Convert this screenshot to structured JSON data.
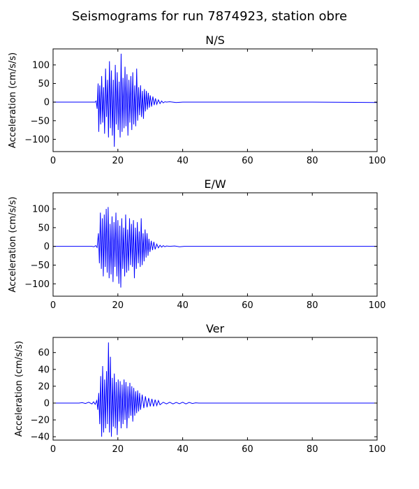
{
  "figure": {
    "title": "Seismograms for run 7874923, station obre"
  },
  "chart_data": [
    {
      "type": "line",
      "title": "N/S",
      "xlabel": "",
      "ylabel": "Acceleration (cm/s/s)",
      "xlim": [
        0,
        100
      ],
      "ylim": [
        -133,
        143
      ],
      "xticks": [
        0,
        20,
        40,
        60,
        80,
        100
      ],
      "yticks": [
        -100,
        -50,
        0,
        50,
        100
      ],
      "color": "#0000ff",
      "grid": false,
      "x": [
        0,
        13,
        13.3,
        13.6,
        13.9,
        14.1,
        14.4,
        14.7,
        15,
        15.3,
        15.6,
        15.9,
        16.2,
        16.5,
        16.8,
        17.1,
        17.4,
        17.7,
        18,
        18.3,
        18.6,
        18.9,
        19.2,
        19.5,
        19.8,
        20.1,
        20.4,
        20.7,
        21,
        21.3,
        21.6,
        21.9,
        22.2,
        22.5,
        22.8,
        23.1,
        23.4,
        23.7,
        24,
        24.3,
        24.6,
        24.9,
        25.2,
        25.5,
        25.8,
        26.1,
        26.4,
        26.7,
        27,
        27.3,
        27.6,
        27.9,
        28.2,
        28.5,
        28.8,
        29.1,
        29.4,
        29.7,
        30,
        30.4,
        30.8,
        31.2,
        31.6,
        32,
        32.5,
        33,
        33.5,
        34,
        34.5,
        35,
        36,
        38,
        40,
        45,
        60,
        80,
        100
      ],
      "y": [
        0,
        0,
        3,
        -18,
        50,
        -80,
        45,
        -60,
        70,
        -55,
        40,
        -85,
        90,
        -40,
        60,
        -95,
        110,
        -70,
        85,
        -90,
        60,
        -120,
        100,
        -60,
        80,
        -75,
        55,
        -95,
        130,
        -80,
        65,
        -70,
        95,
        -65,
        75,
        -90,
        60,
        -55,
        70,
        -75,
        80,
        -60,
        45,
        -65,
        90,
        -50,
        40,
        -35,
        45,
        -40,
        30,
        -45,
        35,
        -25,
        30,
        -20,
        25,
        -15,
        18,
        -12,
        15,
        -8,
        10,
        -6,
        6,
        -4,
        3,
        -2,
        1,
        0,
        1,
        -1,
        0,
        0,
        0,
        0,
        -1
      ]
    },
    {
      "type": "line",
      "title": "E/W",
      "xlabel": "",
      "ylabel": "Acceleration (cm/s/s)",
      "xlim": [
        0,
        100
      ],
      "ylim": [
        -133,
        143
      ],
      "xticks": [
        0,
        20,
        40,
        60,
        80,
        100
      ],
      "yticks": [
        -100,
        -50,
        0,
        50,
        100
      ],
      "color": "#0000ff",
      "grid": false,
      "x": [
        0,
        12,
        12.6,
        13.2,
        13.6,
        14,
        14.3,
        14.6,
        14.9,
        15.2,
        15.5,
        15.8,
        16.1,
        16.4,
        16.7,
        17,
        17.3,
        17.6,
        17.9,
        18.2,
        18.5,
        18.8,
        19.1,
        19.4,
        19.7,
        20,
        20.3,
        20.6,
        20.9,
        21.2,
        21.5,
        21.8,
        22.1,
        22.4,
        22.7,
        23,
        23.3,
        23.6,
        23.9,
        24.2,
        24.5,
        24.8,
        25.1,
        25.4,
        25.7,
        26,
        26.3,
        26.6,
        26.9,
        27.2,
        27.5,
        27.8,
        28.1,
        28.4,
        28.7,
        29,
        29.3,
        29.6,
        29.9,
        30.3,
        30.7,
        31.1,
        31.5,
        32,
        32.5,
        33,
        33.5,
        34,
        34.5,
        35,
        36,
        37.5,
        39,
        40.5,
        42,
        45,
        60,
        80,
        100
      ],
      "y": [
        0,
        0,
        -1,
        2,
        -3,
        35,
        -45,
        90,
        -60,
        75,
        -80,
        85,
        -55,
        100,
        -70,
        105,
        -85,
        60,
        -75,
        80,
        -95,
        65,
        -55,
        90,
        -80,
        70,
        -100,
        55,
        -110,
        75,
        -60,
        50,
        -80,
        85,
        -70,
        45,
        -65,
        75,
        -50,
        60,
        -55,
        70,
        -85,
        50,
        -60,
        65,
        -45,
        40,
        -55,
        75,
        -50,
        35,
        -40,
        45,
        -30,
        35,
        -25,
        20,
        -15,
        15,
        -10,
        12,
        -8,
        6,
        -4,
        3,
        -2,
        2,
        -1,
        1,
        0,
        1,
        -1,
        0,
        0,
        0,
        0,
        0,
        0
      ]
    },
    {
      "type": "line",
      "title": "Ver",
      "xlabel": "",
      "ylabel": "Acceleration (cm/s/s)",
      "xlim": [
        0,
        100
      ],
      "ylim": [
        -44,
        78
      ],
      "xticks": [
        0,
        20,
        40,
        60,
        80,
        100
      ],
      "yticks": [
        -40,
        -20,
        0,
        20,
        40,
        60
      ],
      "color": "#0000ff",
      "grid": false,
      "x": [
        0,
        8,
        9,
        10,
        11,
        12,
        12.5,
        13,
        13.5,
        13.8,
        14.1,
        14.4,
        14.7,
        15,
        15.3,
        15.6,
        15.9,
        16.2,
        16.5,
        16.8,
        17.1,
        17.4,
        17.7,
        18,
        18.3,
        18.6,
        18.9,
        19.2,
        19.5,
        19.8,
        20.1,
        20.4,
        20.7,
        21,
        21.3,
        21.6,
        21.9,
        22.2,
        22.5,
        22.8,
        23.1,
        23.4,
        23.7,
        24,
        24.3,
        24.6,
        24.9,
        25.2,
        25.5,
        25.8,
        26.1,
        26.4,
        26.7,
        27,
        27.5,
        28,
        28.5,
        29,
        29.5,
        30,
        30.5,
        31,
        31.5,
        32,
        32.5,
        33,
        34,
        35,
        36,
        37,
        38,
        39,
        40,
        41,
        42,
        43,
        44,
        45,
        60,
        80,
        100
      ],
      "y": [
        0,
        0,
        0.5,
        -0.5,
        1,
        -1,
        1.5,
        -1.5,
        3,
        -8,
        12,
        -25,
        32,
        -40,
        44,
        -35,
        28,
        -30,
        38,
        -25,
        72,
        -35,
        55,
        -40,
        30,
        -28,
        35,
        -30,
        25,
        -38,
        28,
        -22,
        26,
        -30,
        22,
        -25,
        28,
        -20,
        25,
        -30,
        20,
        -18,
        24,
        -15,
        20,
        -22,
        18,
        -15,
        14,
        -12,
        15,
        -10,
        12,
        -8,
        10,
        -6,
        8,
        -5,
        6,
        -4,
        5,
        -4,
        4,
        -3,
        3,
        -2,
        1,
        -1,
        1,
        -1,
        0.8,
        -0.8,
        1,
        -1,
        0.8,
        -0.5,
        0.3,
        0,
        0,
        0,
        0
      ]
    }
  ]
}
